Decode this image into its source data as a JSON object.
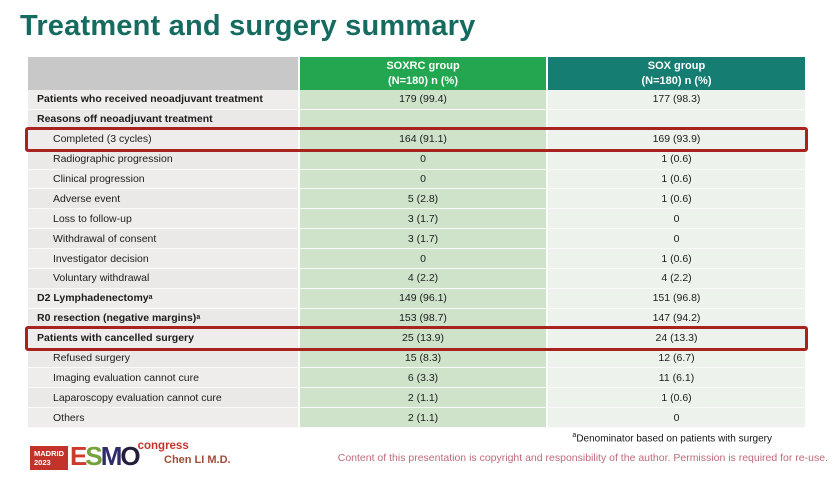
{
  "title": "Treatment and surgery summary",
  "table": {
    "header": {
      "col2_line1": "SOXRC group",
      "col2_line2": "(N=180)  n (%)",
      "col3_line1": "SOX group",
      "col3_line2": "(N=180)  n (%)"
    },
    "rows": [
      {
        "label": "Patients who received neoadjuvant treatment",
        "sup": "",
        "soxrc": "179 (99.4)",
        "sox": "177 (98.3)",
        "bold": true,
        "indent": false,
        "highlight": false
      },
      {
        "label": "Reasons off neoadjuvant treatment",
        "sup": "",
        "soxrc": "",
        "sox": "",
        "bold": true,
        "indent": false,
        "highlight": false
      },
      {
        "label": "Completed (3 cycles)",
        "sup": "",
        "soxrc": "164 (91.1)",
        "sox": "169 (93.9)",
        "bold": false,
        "indent": true,
        "highlight": true
      },
      {
        "label": "Radiographic progression",
        "sup": "",
        "soxrc": "0",
        "sox": "1 (0.6)",
        "bold": false,
        "indent": true,
        "highlight": false
      },
      {
        "label": "Clinical progression",
        "sup": "",
        "soxrc": "0",
        "sox": "1 (0.6)",
        "bold": false,
        "indent": true,
        "highlight": false
      },
      {
        "label": "Adverse event",
        "sup": "",
        "soxrc": "5 (2.8)",
        "sox": "1 (0.6)",
        "bold": false,
        "indent": true,
        "highlight": false
      },
      {
        "label": "Loss to follow-up",
        "sup": "",
        "soxrc": "3 (1.7)",
        "sox": "0",
        "bold": false,
        "indent": true,
        "highlight": false
      },
      {
        "label": "Withdrawal of consent",
        "sup": "",
        "soxrc": "3 (1.7)",
        "sox": "0",
        "bold": false,
        "indent": true,
        "highlight": false
      },
      {
        "label": "Investigator decision",
        "sup": "",
        "soxrc": "0",
        "sox": "1 (0.6)",
        "bold": false,
        "indent": true,
        "highlight": false
      },
      {
        "label": "Voluntary withdrawal",
        "sup": "",
        "soxrc": "4 (2.2)",
        "sox": "4 (2.2)",
        "bold": false,
        "indent": true,
        "highlight": false
      },
      {
        "label": "D2 Lymphadenectomy",
        "sup": "a",
        "soxrc": "149 (96.1)",
        "sox": "151 (96.8)",
        "bold": true,
        "indent": false,
        "highlight": false
      },
      {
        "label": "R0 resection (negative margins)",
        "sup": "a",
        "soxrc": "153 (98.7)",
        "sox": "147 (94.2)",
        "bold": true,
        "indent": false,
        "highlight": false
      },
      {
        "label": "Patients with cancelled surgery",
        "sup": "",
        "soxrc": "25 (13.9)",
        "sox": "24 (13.3)",
        "bold": true,
        "indent": false,
        "highlight": true
      },
      {
        "label": "Refused surgery",
        "sup": "",
        "soxrc": "15 (8.3)",
        "sox": "12 (6.7)",
        "bold": false,
        "indent": true,
        "highlight": false
      },
      {
        "label": "Imaging evaluation cannot cure",
        "sup": "",
        "soxrc": "6 (3.3)",
        "sox": "11 (6.1)",
        "bold": false,
        "indent": true,
        "highlight": false
      },
      {
        "label": "Laparoscopy evaluation cannot cure",
        "sup": "",
        "soxrc": "2 (1.1)",
        "sox": "1 (0.6)",
        "bold": false,
        "indent": true,
        "highlight": false
      },
      {
        "label": "Others",
        "sup": "",
        "soxrc": "2 (1.1)",
        "sox": "0",
        "bold": false,
        "indent": true,
        "highlight": false
      }
    ]
  },
  "footer": {
    "footnote_sup": "a",
    "footnote": "Denominator based on patients with surgery",
    "author": "Chen LI M.D.",
    "copyright": "Content of this presentation is copyright and responsibility of the author. Permission is required for re-use.",
    "logo": {
      "venue": "MADRID",
      "year": "2023",
      "e": "E",
      "s": "S",
      "m": "M",
      "o": "O",
      "congress": "congress"
    }
  },
  "colors": {
    "title_teal": "#156b60",
    "header_green": "#22a64f",
    "header_teal": "#157d71",
    "header_gray": "#c8c8c8",
    "soxrc_cell_green": "#cfe3cb",
    "sox_cell_pale": "#edf3ec",
    "highlight_red": "#a8231d",
    "logo_red": "#c4332b",
    "copyright_rose": "#bd6b79"
  }
}
